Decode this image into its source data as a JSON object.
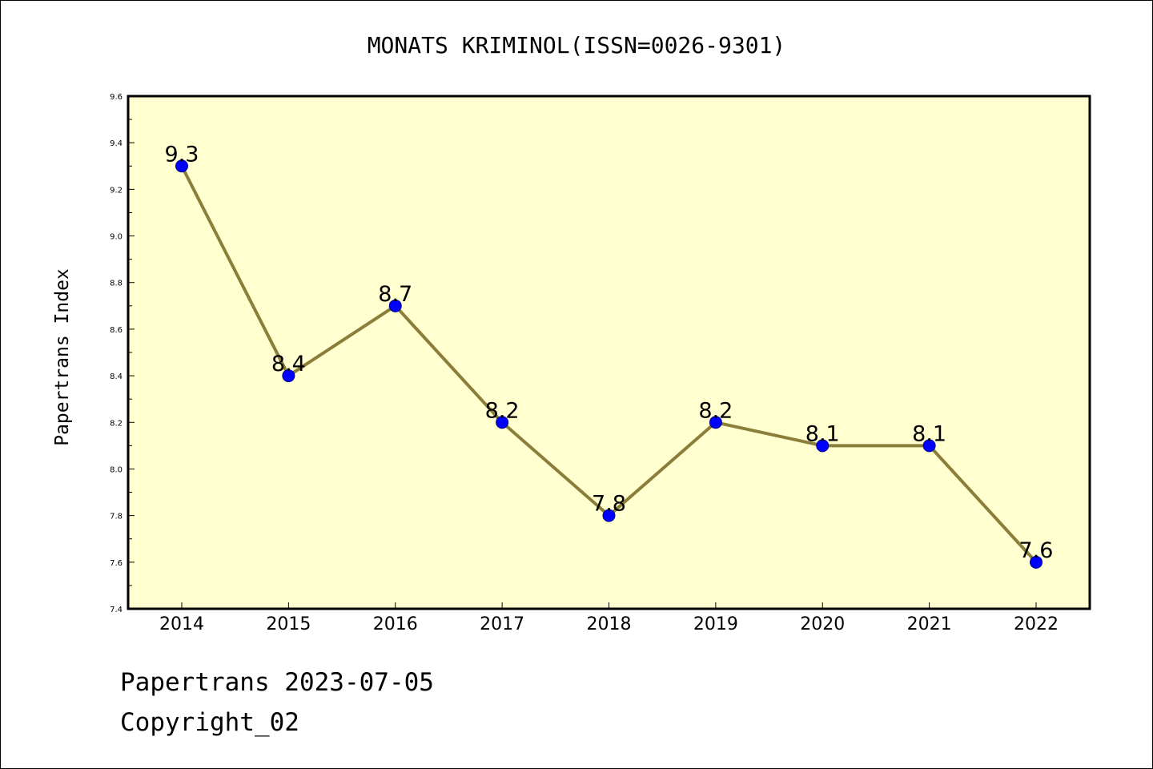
{
  "chart_data": {
    "type": "line",
    "title": "MONATS KRIMINOL(ISSN=0026-9301)",
    "xlabel": "",
    "ylabel": "Papertrans Index",
    "categories": [
      "2014",
      "2015",
      "2016",
      "2017",
      "2018",
      "2019",
      "2020",
      "2021",
      "2022"
    ],
    "series": [
      {
        "values": [
          9.3,
          8.4,
          8.7,
          8.2,
          7.8,
          8.2,
          8.1,
          8.1,
          7.6
        ],
        "data_labels": [
          "9.3",
          "8.4",
          "8.7",
          "8.2",
          "7.8",
          "8.2",
          "8.1",
          "8.1",
          "7.6"
        ]
      }
    ],
    "ylim": [
      7.4,
      9.6
    ],
    "yticks": [
      "7.4",
      "7.6",
      "7.8",
      "8.0",
      "8.2",
      "8.4",
      "8.6",
      "8.8",
      "9.0",
      "9.2",
      "9.4",
      "9.6"
    ],
    "grid": false,
    "colors": {
      "plot_background": "#FFFFD0",
      "line": "#8B7D3A",
      "marker": "#0000FF",
      "marker_edge": "#00008B"
    }
  },
  "footer": {
    "line1": "Papertrans 2023-07-05",
    "line2": "Copyright_02"
  }
}
